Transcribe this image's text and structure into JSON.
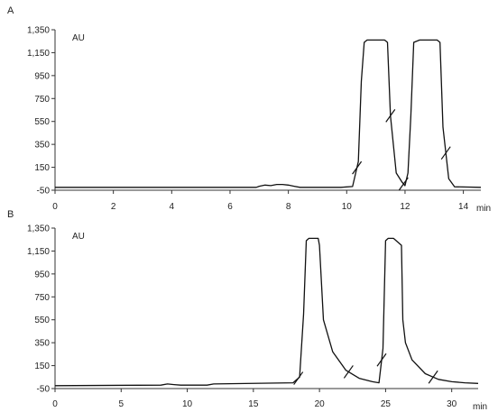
{
  "chart_data": [
    {
      "type": "line",
      "panel_label": "A",
      "y_unit_label": "AU",
      "x_unit_label": "min",
      "xlim": [
        0,
        14.6
      ],
      "ylim": [
        -50,
        1350
      ],
      "x_ticks": [
        0,
        2,
        4,
        6,
        8,
        10,
        12,
        14
      ],
      "x_tick_labels": [
        "0",
        "2",
        "4",
        "6",
        "8",
        "10",
        "12",
        "14"
      ],
      "y_ticks": [
        -50,
        150,
        350,
        550,
        750,
        950,
        1150,
        1350
      ],
      "y_tick_labels": [
        "-50",
        "150",
        "350",
        "550",
        "750",
        "950",
        "1,150",
        "1,350"
      ],
      "series": [
        {
          "x": [
            0,
            6.9,
            7.0,
            7.2,
            7.4,
            7.6,
            7.8,
            8.0,
            8.2,
            8.4,
            9.0,
            9.8,
            10.2,
            10.4,
            10.5,
            10.6,
            10.7,
            11.3,
            11.4,
            11.5,
            11.7,
            11.9,
            12.0,
            12.1,
            12.2,
            12.3,
            12.5,
            13.1,
            13.2,
            13.3,
            13.5,
            13.7,
            14.6
          ],
          "y": [
            -25,
            -25,
            -15,
            -5,
            -10,
            0,
            0,
            -5,
            -15,
            -25,
            -25,
            -25,
            -18,
            200,
            900,
            1240,
            1260,
            1260,
            1240,
            600,
            100,
            20,
            -10,
            100,
            600,
            1240,
            1260,
            1260,
            1240,
            500,
            50,
            -20,
            -25
          ]
        }
      ],
      "integration_marks_x": [
        10.35,
        11.5,
        11.95,
        13.4
      ]
    },
    {
      "type": "line",
      "panel_label": "B",
      "y_unit_label": "AU",
      "x_unit_label": "min",
      "xlim": [
        0,
        32
      ],
      "ylim": [
        -50,
        1350
      ],
      "x_ticks": [
        0,
        5,
        10,
        15,
        20,
        25,
        30
      ],
      "x_tick_labels": [
        "0",
        "5",
        "10",
        "15",
        "20",
        "25",
        "30"
      ],
      "y_ticks": [
        -50,
        150,
        350,
        550,
        750,
        950,
        1150,
        1350
      ],
      "y_tick_labels": [
        "-50",
        "150",
        "350",
        "550",
        "750",
        "950",
        "1,150",
        "1,350"
      ],
      "series": [
        {
          "x": [
            0,
            8.0,
            8.5,
            9.0,
            9.5,
            11.5,
            12.0,
            18.0,
            18.5,
            18.8,
            19.0,
            19.2,
            19.9,
            20.0,
            20.3,
            21.0,
            22.0,
            23.0,
            24.0,
            24.5,
            24.8,
            25.0,
            25.2,
            25.6,
            26.2,
            26.3,
            26.5,
            27.0,
            28.0,
            29.0,
            30.0,
            31.0,
            32.0
          ],
          "y": [
            -25,
            -20,
            -10,
            -15,
            -20,
            -20,
            -10,
            0,
            50,
            600,
            1240,
            1260,
            1260,
            1200,
            550,
            270,
            110,
            40,
            10,
            0,
            300,
            1240,
            1260,
            1260,
            1200,
            550,
            350,
            200,
            80,
            30,
            10,
            0,
            -5
          ]
        }
      ],
      "integration_marks_x": [
        18.4,
        22.2,
        24.7,
        28.6
      ]
    }
  ]
}
